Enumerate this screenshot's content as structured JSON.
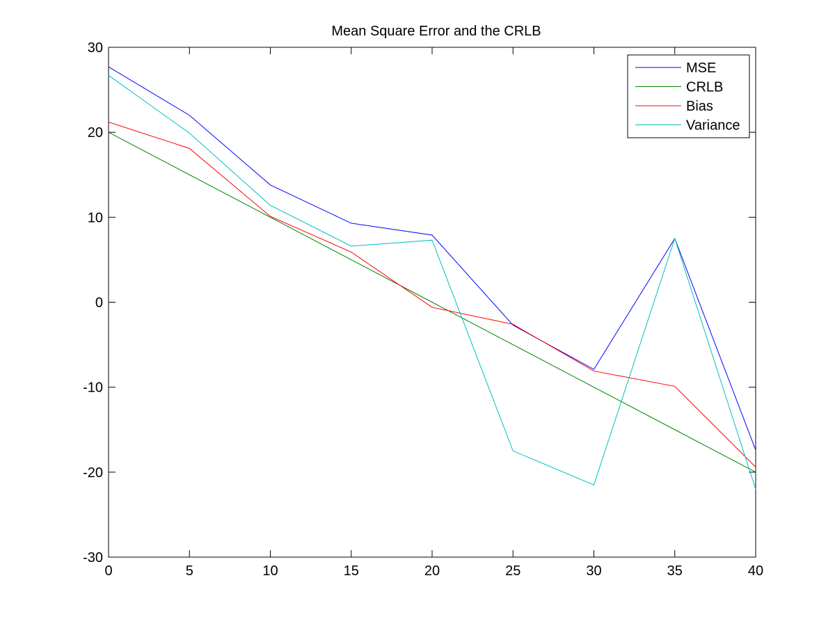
{
  "chart_data": {
    "type": "line",
    "title": "Mean Square Error and the CRLB",
    "xlabel": "",
    "ylabel": "",
    "xlim": [
      0,
      40
    ],
    "ylim": [
      -30,
      30
    ],
    "x_ticks": [
      0,
      5,
      10,
      15,
      20,
      25,
      30,
      35,
      40
    ],
    "y_ticks": [
      -30,
      -20,
      -10,
      0,
      10,
      20,
      30
    ],
    "grid": false,
    "legend_position": "top-right",
    "x": [
      0,
      5,
      10,
      15,
      20,
      25,
      30,
      35,
      40
    ],
    "series": [
      {
        "name": "MSE",
        "color": "#0000ff",
        "values": [
          27.7,
          22.0,
          13.8,
          9.3,
          7.9,
          -2.7,
          -7.9,
          7.5,
          -17.4
        ]
      },
      {
        "name": "CRLB",
        "color": "#008000",
        "values": [
          20.0,
          15.0,
          10.0,
          5.0,
          0.0,
          -5.0,
          -10.0,
          -15.0,
          -20.0
        ]
      },
      {
        "name": "Bias",
        "color": "#ff0000",
        "values": [
          21.2,
          18.1,
          10.1,
          5.9,
          -0.6,
          -2.6,
          -8.1,
          -9.9,
          -19.4
        ]
      },
      {
        "name": "Variance",
        "color": "#00bfbf",
        "values": [
          26.7,
          19.9,
          11.4,
          6.6,
          7.3,
          -17.5,
          -21.5,
          7.5,
          -22.0
        ]
      }
    ]
  }
}
